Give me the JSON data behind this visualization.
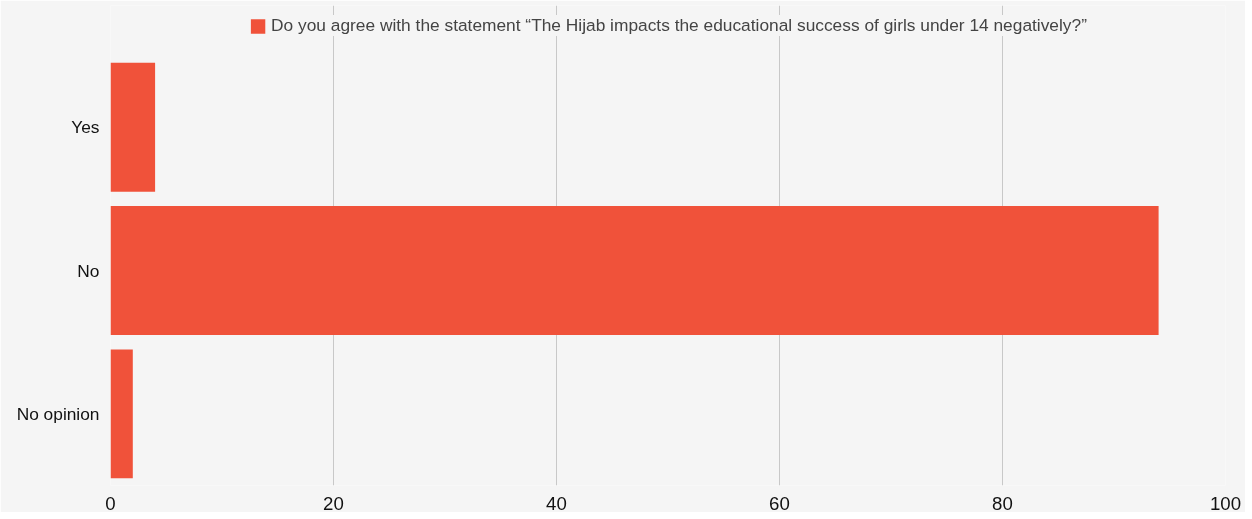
{
  "chart_data": {
    "type": "bar",
    "orientation": "horizontal",
    "categories": [
      "Yes",
      "No",
      "No opinion"
    ],
    "series": [
      {
        "name": "Do you agree with the statement “The Hijab impacts the educational success of girls under 14 negatively?”",
        "color": "#f0523a",
        "values": [
          4,
          94,
          2
        ]
      }
    ],
    "xlim": [
      0,
      100
    ],
    "xticks": [
      0,
      20,
      40,
      60,
      80,
      100
    ],
    "grid": "x",
    "legend": "top"
  }
}
